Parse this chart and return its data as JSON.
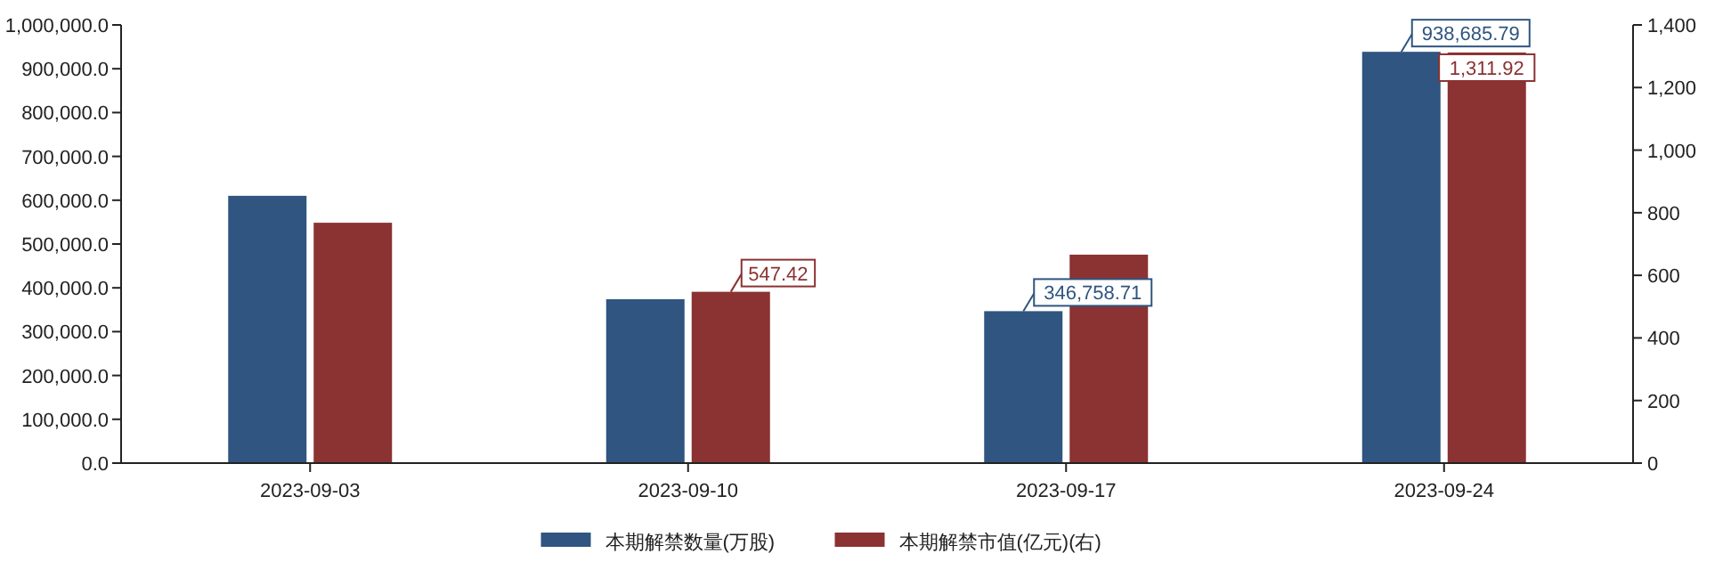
{
  "chart_data": {
    "type": "bar",
    "categories": [
      "2023-09-03",
      "2023-09-10",
      "2023-09-17",
      "2023-09-24"
    ],
    "series": [
      {
        "name": "本期解禁数量(万股)",
        "color": "#2f5580",
        "values": [
          610000,
          374000,
          346758.71,
          938685.79
        ],
        "value_labels": [
          null,
          null,
          "346,758.71",
          "938,685.79"
        ]
      },
      {
        "name": "本期解禁市值(亿元)(右)",
        "color": "#8b3232",
        "axis": "y2",
        "values": [
          768,
          547.42,
          666,
          1311.92
        ],
        "value_labels": [
          null,
          "547.42",
          null,
          "1,311.92"
        ]
      }
    ],
    "ylim": [
      0,
      1000000
    ],
    "yticks": [
      {
        "value": 0,
        "label": "0.0"
      },
      {
        "value": 100000,
        "label": "100,000.0"
      },
      {
        "value": 200000,
        "label": "200,000.0"
      },
      {
        "value": 300000,
        "label": "300,000.0"
      },
      {
        "value": 400000,
        "label": "400,000.0"
      },
      {
        "value": 500000,
        "label": "500,000.0"
      },
      {
        "value": 600000,
        "label": "600,000.0"
      },
      {
        "value": 700000,
        "label": "700,000.0"
      },
      {
        "value": 800000,
        "label": "800,000.0"
      },
      {
        "value": 900000,
        "label": "900,000.0"
      },
      {
        "value": 1000000,
        "label": "1,000,000.0"
      }
    ],
    "y2lim": [
      0,
      1400
    ],
    "y2ticks": [
      0,
      200,
      400,
      600,
      800,
      {
        "value": 1000,
        "label": "1,000"
      },
      {
        "value": 1200,
        "label": "1,200"
      },
      {
        "value": 1400,
        "label": "1,400"
      }
    ],
    "grid": false,
    "legend": "bottom"
  }
}
